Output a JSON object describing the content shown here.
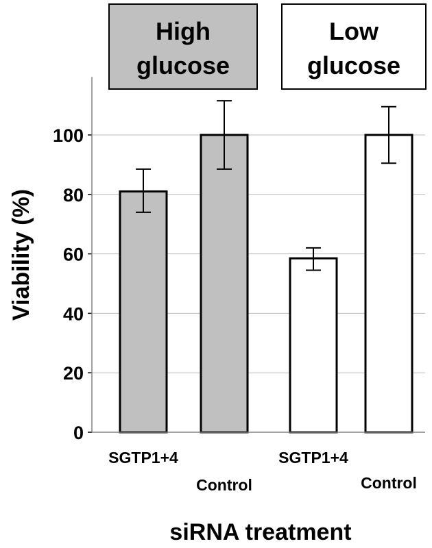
{
  "chart_data": {
    "type": "bar",
    "title": "",
    "xlabel": "siRNA treatment",
    "ylabel": "Viability (%)",
    "ylim": [
      0,
      120
    ],
    "yticks": [
      0,
      20,
      40,
      60,
      80,
      100
    ],
    "grid": true,
    "groups": [
      {
        "label_lines": [
          "High",
          "glucose"
        ],
        "fill": "#c0c0c0"
      },
      {
        "label_lines": [
          "Low",
          "glucose"
        ],
        "fill": "#ffffff"
      }
    ],
    "bars": [
      {
        "label": "SGTP1+4",
        "group": 0,
        "value": 81,
        "err_low": 7,
        "err_high": 7.5
      },
      {
        "label": "Control",
        "group": 0,
        "value": 100,
        "err_low": 11.5,
        "err_high": 11.5
      },
      {
        "label": "SGTP1+4",
        "group": 1,
        "value": 58.5,
        "err_low": 4,
        "err_high": 3.5
      },
      {
        "label": "Control",
        "group": 1,
        "value": 100,
        "err_low": 9.5,
        "err_high": 9.5
      }
    ]
  }
}
